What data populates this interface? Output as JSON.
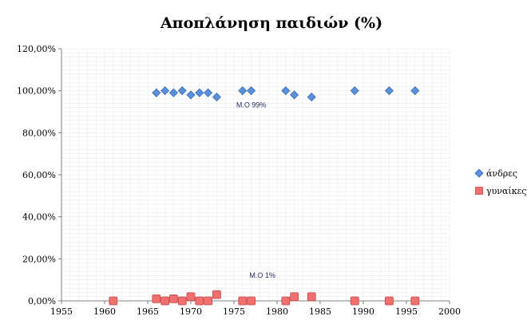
{
  "chart_data": {
    "type": "scatter",
    "title": "Αποπλάνηση παιδιών (%)",
    "xlabel": "",
    "ylabel": "",
    "xlim": [
      1955,
      2000
    ],
    "ylim": [
      0,
      1.2
    ],
    "x_ticks": [
      "1955",
      "1960",
      "1965",
      "1970",
      "1975",
      "1980",
      "1985",
      "1990",
      "1995",
      "2000"
    ],
    "y_ticks": [
      "0,00%",
      "20,00%",
      "40,00%",
      "60,00%",
      "80,00%",
      "100,00%",
      "120,00%"
    ],
    "grid": "x-y minor",
    "legend_position": "right",
    "series": [
      {
        "name": "άνδρες",
        "color": "#5b8fd9",
        "marker": "diamond",
        "x": [
          1966,
          1967,
          1968,
          1969,
          1970,
          1971,
          1972,
          1973,
          1976,
          1977,
          1981,
          1982,
          1984,
          1989,
          1993,
          1996
        ],
        "y": [
          0.99,
          1.0,
          0.99,
          1.0,
          0.98,
          0.99,
          0.99,
          0.97,
          1.0,
          1.0,
          1.0,
          0.98,
          0.97,
          1.0,
          1.0,
          1.0
        ]
      },
      {
        "name": "γυναίκες",
        "color": "#f07070",
        "marker": "square",
        "x": [
          1961,
          1966,
          1967,
          1968,
          1969,
          1970,
          1971,
          1972,
          1973,
          1976,
          1977,
          1981,
          1982,
          1984,
          1989,
          1993,
          1996
        ],
        "y": [
          0.0,
          0.01,
          0.0,
          0.01,
          0.0,
          0.02,
          0.0,
          0.0,
          0.03,
          0.0,
          0.0,
          0.0,
          0.02,
          0.02,
          0.0,
          0.0,
          0.0
        ]
      }
    ],
    "annotations": [
      {
        "text": "M.O 99%",
        "x": 1977,
        "y": 0.92
      },
      {
        "text": "M.O 1%",
        "x": 1978.3,
        "y": 0.11
      }
    ]
  }
}
